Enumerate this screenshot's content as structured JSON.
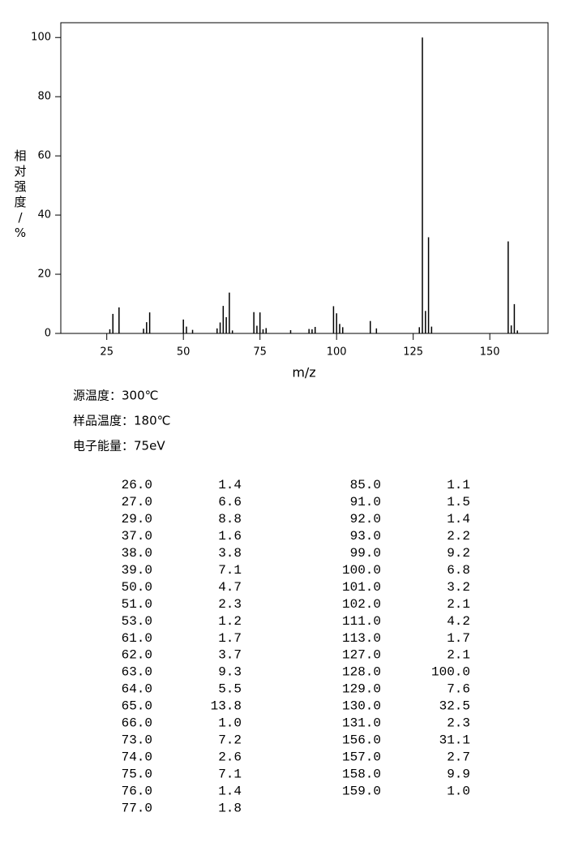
{
  "chart_data": {
    "type": "bar",
    "x_label": "m/z",
    "y_label": "相对强度/%",
    "x": [
      26,
      27,
      29,
      37,
      38,
      39,
      50,
      51,
      53,
      61,
      62,
      63,
      64,
      65,
      66,
      73,
      74,
      75,
      76,
      77,
      85,
      91,
      92,
      93,
      99,
      100,
      101,
      102,
      111,
      113,
      127,
      128,
      129,
      130,
      131,
      156,
      157,
      158,
      159
    ],
    "values": [
      1.4,
      6.6,
      8.8,
      1.6,
      3.8,
      7.1,
      4.7,
      2.3,
      1.2,
      1.7,
      3.7,
      9.3,
      5.5,
      13.8,
      1.0,
      7.2,
      2.6,
      7.1,
      1.4,
      1.8,
      1.1,
      1.5,
      1.4,
      2.2,
      9.2,
      6.8,
      3.2,
      2.1,
      4.2,
      1.7,
      2.1,
      100.0,
      7.6,
      32.5,
      2.3,
      31.1,
      2.7,
      9.9,
      1.0
    ],
    "color": "#000000",
    "xlim": [
      10,
      169
    ],
    "xticks": [
      25,
      50,
      75,
      100,
      125,
      150
    ],
    "ylim": [
      0,
      105
    ],
    "yticks": [
      0,
      20,
      40,
      60,
      80,
      100
    ]
  },
  "info": [
    "源温度：300℃",
    "样品温度：180℃",
    "电子能量：75eV"
  ],
  "table": {
    "rows": [
      [
        "26.0",
        "1.4"
      ],
      [
        "27.0",
        "6.6"
      ],
      [
        "29.0",
        "8.8"
      ],
      [
        "37.0",
        "1.6"
      ],
      [
        "38.0",
        "3.8"
      ],
      [
        "39.0",
        "7.1"
      ],
      [
        "50.0",
        "4.7"
      ],
      [
        "51.0",
        "2.3"
      ],
      [
        "53.0",
        "1.2"
      ],
      [
        "61.0",
        "1.7"
      ],
      [
        "62.0",
        "3.7"
      ],
      [
        "63.0",
        "9.3"
      ],
      [
        "64.0",
        "5.5"
      ],
      [
        "65.0",
        "13.8"
      ],
      [
        "66.0",
        "1.0"
      ],
      [
        "73.0",
        "7.2"
      ],
      [
        "74.0",
        "2.6"
      ],
      [
        "75.0",
        "7.1"
      ],
      [
        "76.0",
        "1.4"
      ],
      [
        "77.0",
        "1.8"
      ],
      [
        "85.0",
        "1.1"
      ],
      [
        "91.0",
        "1.5"
      ],
      [
        "92.0",
        "1.4"
      ],
      [
        "93.0",
        "2.2"
      ],
      [
        "99.0",
        "9.2"
      ],
      [
        "100.0",
        "6.8"
      ],
      [
        "101.0",
        "3.2"
      ],
      [
        "102.0",
        "2.1"
      ],
      [
        "111.0",
        "4.2"
      ],
      [
        "113.0",
        "1.7"
      ],
      [
        "127.0",
        "2.1"
      ],
      [
        "128.0",
        "100.0"
      ],
      [
        "129.0",
        "7.6"
      ],
      [
        "130.0",
        "32.5"
      ],
      [
        "131.0",
        "2.3"
      ],
      [
        "156.0",
        "31.1"
      ],
      [
        "157.0",
        "2.7"
      ],
      [
        "158.0",
        "9.9"
      ],
      [
        "159.0",
        "1.0"
      ]
    ]
  }
}
